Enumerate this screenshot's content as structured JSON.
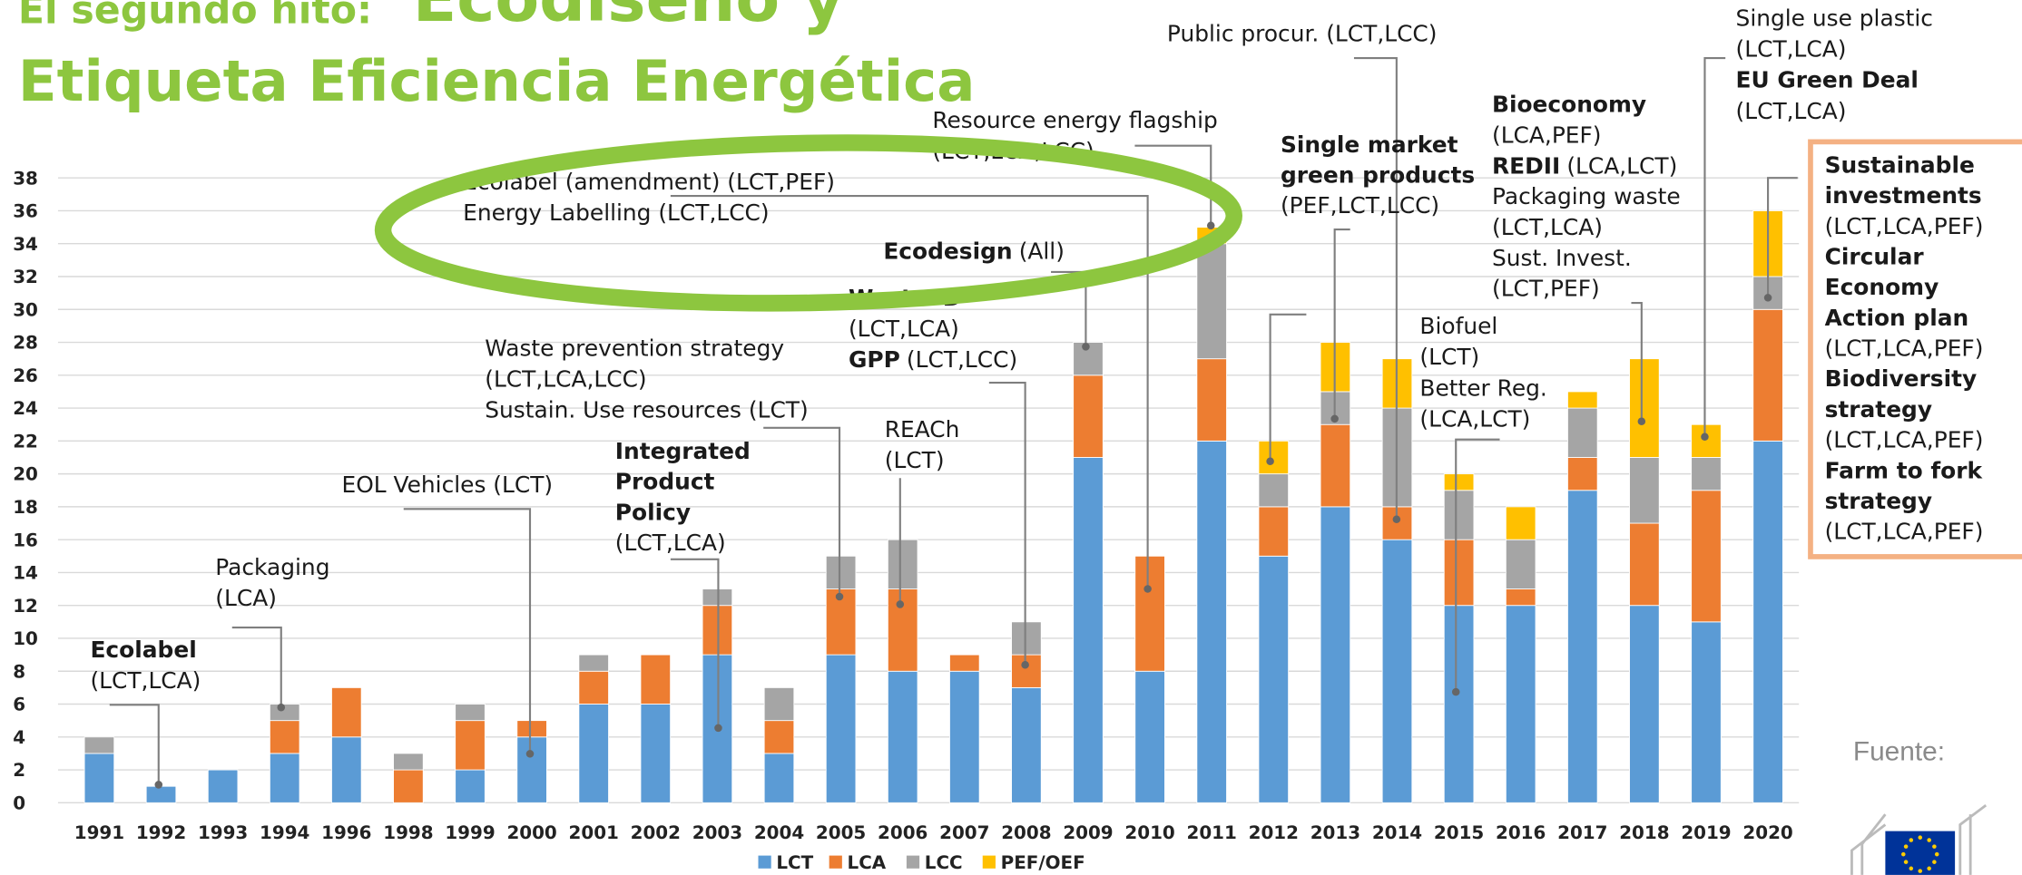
{
  "chart_data": {
    "type": "stacked_bar",
    "title": {
      "small": "El segundo hito:",
      "large": "Ecodiseño y",
      "line2": "Etiqueta Eficiencia Energética"
    },
    "source_label": "Fuente:",
    "categories": [
      "1991",
      "1992",
      "1993",
      "1994",
      "1996",
      "1998",
      "1999",
      "2000",
      "2001",
      "2002",
      "2003",
      "2004",
      "2005",
      "2006",
      "2007",
      "2008",
      "2009",
      "2010",
      "2011",
      "2012",
      "2013",
      "2014",
      "2015",
      "2016",
      "2017",
      "2018",
      "2019",
      "2020"
    ],
    "series": [
      {
        "name": "LCT",
        "color": "#5b9bd5",
        "values": [
          3,
          1,
          2,
          3,
          4,
          0,
          2,
          4,
          6,
          6,
          9,
          3,
          9,
          8,
          8,
          7,
          21,
          8,
          22,
          15,
          18,
          16,
          12,
          12,
          19,
          12,
          11,
          22
        ]
      },
      {
        "name": "LCA",
        "color": "#ed7d31",
        "values": [
          0,
          0,
          0,
          2,
          3,
          2,
          3,
          1,
          2,
          3,
          3,
          2,
          4,
          5,
          1,
          2,
          5,
          7,
          5,
          3,
          5,
          2,
          4,
          1,
          2,
          5,
          8,
          8
        ]
      },
      {
        "name": "LCC",
        "color": "#a5a5a5",
        "values": [
          1,
          0,
          0,
          1,
          0,
          1,
          1,
          0,
          1,
          0,
          1,
          2,
          2,
          3,
          0,
          2,
          2,
          0,
          7,
          2,
          2,
          6,
          3,
          3,
          3,
          4,
          2,
          2
        ]
      },
      {
        "name": "PEF/OEF",
        "color": "#ffc000",
        "values": [
          0,
          0,
          0,
          0,
          0,
          0,
          0,
          0,
          0,
          0,
          0,
          0,
          0,
          0,
          0,
          0,
          0,
          0,
          1,
          2,
          3,
          3,
          1,
          2,
          1,
          6,
          2,
          4
        ]
      }
    ],
    "ylim": [
      0,
      38
    ],
    "yticks": [
      0,
      2,
      4,
      6,
      8,
      10,
      12,
      14,
      16,
      18,
      20,
      22,
      24,
      26,
      28,
      30,
      32,
      34,
      36,
      38
    ],
    "grid": true,
    "legend": "bottom",
    "annotations": [
      {
        "lines": [
          {
            "b": "Ecolabel"
          },
          {
            "t": "(LCT,LCA)"
          }
        ]
      },
      {
        "lines": [
          {
            "t": "Packaging"
          },
          {
            "t": "(LCA)"
          }
        ]
      },
      {
        "lines": [
          {
            "t": "EOL Vehicles (LCT)"
          }
        ]
      },
      {
        "lines": [
          {
            "t": "Waste prevention strategy"
          },
          {
            "t": "(LCT,LCA,LCC)"
          },
          {
            "t": "Sustain. Use resources (LCT)"
          }
        ]
      },
      {
        "lines": [
          {
            "b": "Integrated"
          },
          {
            "b": "Product"
          },
          {
            "b": "Policy"
          },
          {
            "t": "(LCT,LCA)"
          }
        ]
      },
      {
        "lines": [
          {
            "t": "REACh"
          },
          {
            "t": "(LCT)"
          }
        ]
      },
      {
        "lines": [
          {
            "b": "WasteFD"
          },
          {
            "t": "(LCT,LCA)"
          },
          {
            "b": "GPP",
            "t": "(LCT,LCC)"
          }
        ]
      },
      {
        "lines": [
          {
            "b": "Ecodesign",
            "t": "(All)"
          }
        ]
      },
      {
        "lines": [
          {
            "t": "Ecolabel (amendment) (LCT,PEF)"
          },
          {
            "t": "Energy Labelling (LCT,LCC)"
          }
        ]
      },
      {
        "lines": [
          {
            "t": "Resource energy flagship"
          },
          {
            "t": "(LCT,LCA,LCC)"
          }
        ]
      },
      {
        "lines": [
          {
            "t": "Public procur. (LCT,LCC)"
          }
        ]
      },
      {
        "lines": [
          {
            "b": "Single market"
          },
          {
            "b": "green products"
          },
          {
            "t": "(PEF,LCT,LCC)"
          }
        ]
      },
      {
        "lines": [
          {
            "t": "Biofuel"
          },
          {
            "t": "(LCT)"
          },
          {
            "t": "Better Reg."
          },
          {
            "t": "(LCA,LCT)"
          }
        ]
      },
      {
        "lines": [
          {
            "b": "Bioeconomy"
          },
          {
            "t": "(LCA,PEF)"
          },
          {
            "b": "REDII",
            "t": "(LCA,LCT)"
          },
          {
            "t": "Packaging waste"
          },
          {
            "t": "(LCT,LCA)"
          },
          {
            "t": "Sust. Invest."
          },
          {
            "t": "(LCT,PEF)"
          }
        ]
      },
      {
        "lines": [
          {
            "t": "Single use plastic"
          },
          {
            "t": "(LCT,LCA)"
          },
          {
            "b": "EU Green Deal"
          },
          {
            "t": "(LCT,LCA)"
          }
        ]
      },
      {
        "lines": [
          {
            "b": "Sustainable"
          },
          {
            "b": "investments"
          },
          {
            "t": "(LCT,LCA,PEF)"
          },
          {
            "b": "Circular"
          },
          {
            "b": "Economy"
          },
          {
            "b": "Action plan"
          },
          {
            "t": "(LCT,LCA,PEF)"
          },
          {
            "b": "Biodiversity"
          },
          {
            "b": "strategy"
          },
          {
            "t": "(LCT,LCA,PEF)"
          },
          {
            "b": "Farm to fork"
          },
          {
            "b": "strategy"
          },
          {
            "t": "(LCT,LCA,PEF)"
          }
        ]
      }
    ]
  }
}
